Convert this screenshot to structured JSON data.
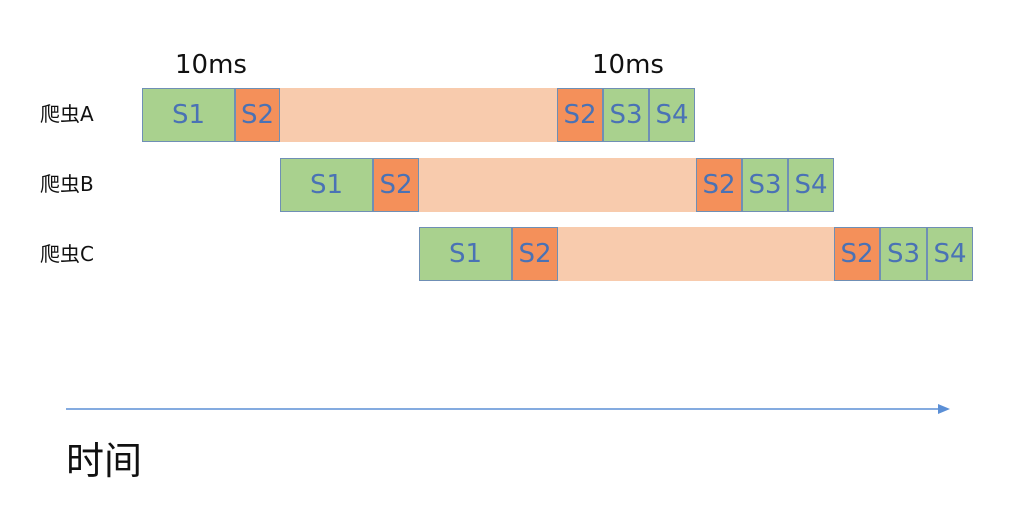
{
  "annotations": [
    "10ms",
    "10ms"
  ],
  "colors": {
    "s1_fill": "#a9d18e",
    "s2_fill": "#f4905a",
    "wait_fill": "#f8cbad",
    "s3_s4_fill": "#a9d18e",
    "border": "#6f8fb5",
    "label_text": "#4a72b5",
    "axis": "#5b8fd6"
  },
  "rows": [
    {
      "name": "爬虫A",
      "stages": [
        "S1",
        "S2",
        "",
        "S2",
        "S3",
        "S4"
      ]
    },
    {
      "name": "爬虫B",
      "stages": [
        "S1",
        "S2",
        "",
        "S2",
        "S3",
        "S4"
      ]
    },
    {
      "name": "爬虫C",
      "stages": [
        "S1",
        "S2",
        "",
        "S2",
        "S3",
        "S4"
      ]
    }
  ],
  "axis": {
    "label": "时间"
  }
}
